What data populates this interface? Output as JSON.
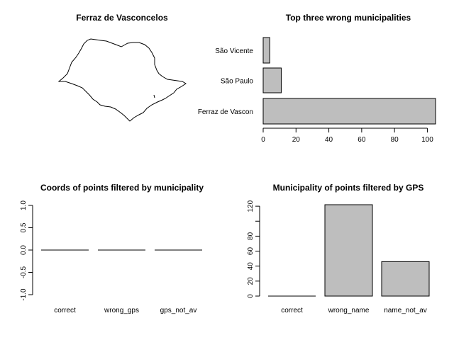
{
  "chart_data": [
    {
      "type": "map",
      "title": "Ferraz de Vasconcelos",
      "region": "São Paulo state outline"
    },
    {
      "type": "bar",
      "orientation": "horizontal",
      "title": "Top three wrong municipalities",
      "categories": [
        "São Vicente",
        "São Paulo",
        "Ferraz de Vascon"
      ],
      "values": [
        4,
        11,
        105
      ],
      "xlim": [
        0,
        105
      ],
      "xticks": [
        0,
        20,
        40,
        60,
        80,
        100
      ]
    },
    {
      "type": "bar",
      "title": "Coords of points filtered by municipality",
      "categories": [
        "correct",
        "wrong_gps",
        "gps_not_av"
      ],
      "values": [
        0,
        0,
        0
      ],
      "ylim": [
        -1,
        1
      ],
      "yticks": [
        "-1.0",
        "-0.5",
        "0.0",
        "0.5",
        "1.0"
      ]
    },
    {
      "type": "bar",
      "title": "Municipality of points filtered by GPS",
      "categories": [
        "correct",
        "wrong_name",
        "name_not_av"
      ],
      "values": [
        0,
        122,
        46
      ],
      "ylim": [
        0,
        122
      ],
      "yticks": [
        0,
        20,
        40,
        60,
        80,
        100,
        120
      ],
      "ytick_labels_shown": [
        "0",
        "20",
        "40",
        "60",
        "80",
        "120"
      ]
    }
  ]
}
